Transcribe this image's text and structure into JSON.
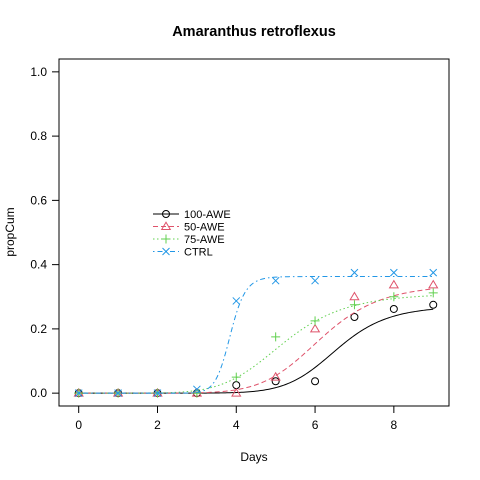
{
  "chart_data": {
    "type": "line",
    "title": "Amaranthus retroflexus",
    "xlabel": "Days",
    "ylabel": "propCum",
    "xlim": [
      -0.5,
      9.4
    ],
    "ylim": [
      -0.04,
      1.04
    ],
    "x_ticks": [
      0,
      2,
      4,
      6,
      8
    ],
    "y_ticks": [
      0.0,
      0.2,
      0.4,
      0.6,
      0.8,
      1.0
    ],
    "x_tick_labels": [
      "0",
      "2",
      "4",
      "6",
      "8"
    ],
    "y_tick_labels": [
      "0.0",
      "0.2",
      "0.4",
      "0.6",
      "0.8",
      "1.0"
    ],
    "grid": false,
    "legend_position": "center-left",
    "series": [
      {
        "name": "100-AWE",
        "color": "#000000",
        "marker": "circle",
        "line_style": "solid",
        "x": [
          0,
          1,
          2,
          3,
          4,
          5,
          6,
          7,
          8,
          9
        ],
        "y": [
          0.0,
          0.0,
          0.0,
          0.0,
          0.025,
          0.037,
          0.037,
          0.237,
          0.262,
          0.275
        ],
        "fit": {
          "d": 0.272,
          "e": 6.55,
          "b": 10
        }
      },
      {
        "name": "50-AWE",
        "color": "#DF536B",
        "marker": "triangle",
        "line_style": "dashed",
        "x": [
          0,
          1,
          2,
          3,
          4,
          5,
          6,
          7,
          8,
          9
        ],
        "y": [
          0.0,
          0.0,
          0.0,
          0.0,
          0.0,
          0.05,
          0.2,
          0.3,
          0.337,
          0.337
        ],
        "fit": {
          "d": 0.34,
          "e": 6.15,
          "b": 8
        }
      },
      {
        "name": "75-AWE",
        "color": "#61D04F",
        "marker": "plus",
        "line_style": "dotted",
        "x": [
          0,
          1,
          2,
          3,
          4,
          5,
          6,
          7,
          8,
          9
        ],
        "y": [
          0.0,
          0.0,
          0.0,
          0.0,
          0.05,
          0.175,
          0.225,
          0.275,
          0.3,
          0.312
        ],
        "fit": {
          "d": 0.312,
          "e": 5.2,
          "b": 6.5
        }
      },
      {
        "name": "CTRL",
        "color": "#2297E6",
        "marker": "x",
        "line_style": "dotdash",
        "x": [
          0,
          1,
          2,
          3,
          4,
          5,
          6,
          7,
          8,
          9
        ],
        "y": [
          0.0,
          0.0,
          0.0,
          0.012,
          0.287,
          0.35,
          0.35,
          0.375,
          0.375,
          0.375
        ],
        "fit": {
          "d": 0.363,
          "e": 3.85,
          "b": 20
        }
      }
    ]
  }
}
